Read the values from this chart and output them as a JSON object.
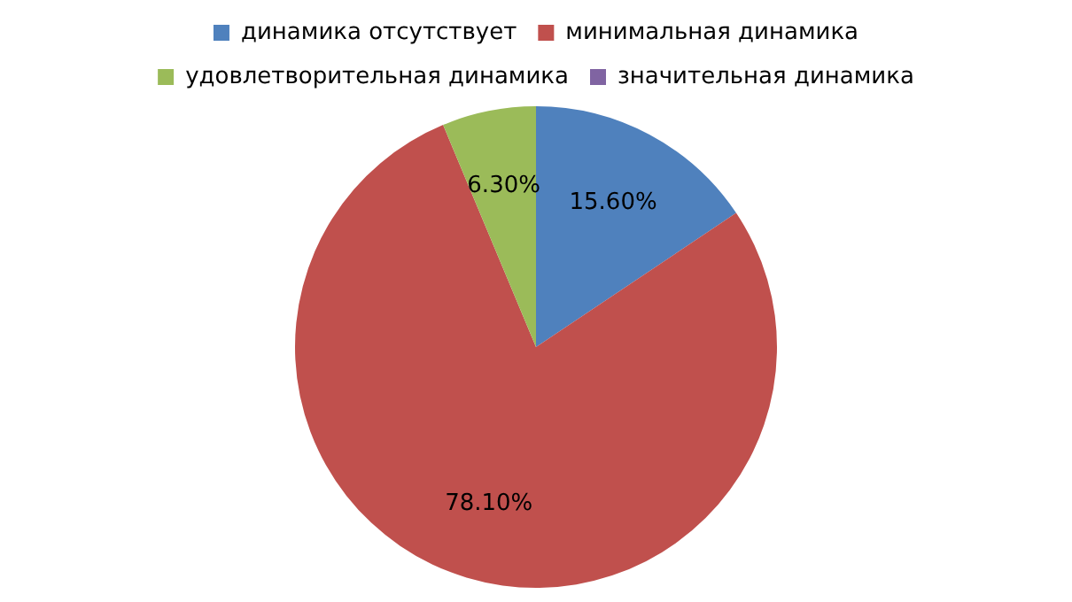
{
  "chart_data": {
    "type": "pie",
    "categories": [
      "динамика отсутствует",
      "минимальная динамика",
      "удовлетворительная динамика",
      "значительная динамика"
    ],
    "values": [
      15.6,
      78.1,
      6.3,
      0
    ],
    "colors": [
      "#4f81bd",
      "#c0504d",
      "#9bbb59",
      "#8064a2"
    ],
    "value_labels": [
      "15.60%",
      "78.10%",
      "6.30%",
      null
    ],
    "legend": "top"
  }
}
